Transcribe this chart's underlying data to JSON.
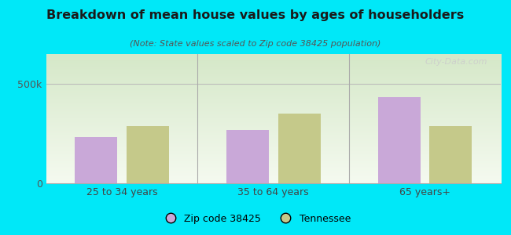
{
  "title": "Breakdown of mean house values by ages of householders",
  "subtitle": "(Note: State values scaled to Zip code 38425 population)",
  "categories": [
    "25 to 34 years",
    "35 to 64 years",
    "65 years+"
  ],
  "zip_values": [
    232000,
    268000,
    435000
  ],
  "state_values": [
    288000,
    352000,
    288000
  ],
  "zip_color": "#c9a8d8",
  "state_color": "#c5c98a",
  "background_color": "#00e8f8",
  "grad_top_color": "#d5e8c8",
  "grad_bottom_color": "#f5faf0",
  "ylim": [
    0,
    650000
  ],
  "yticks": [
    0,
    500000
  ],
  "ytick_labels": [
    "0",
    "500k"
  ],
  "legend_zip_label": "Zip code 38425",
  "legend_state_label": "Tennessee",
  "bar_width": 0.28,
  "watermark": "City-Data.com"
}
